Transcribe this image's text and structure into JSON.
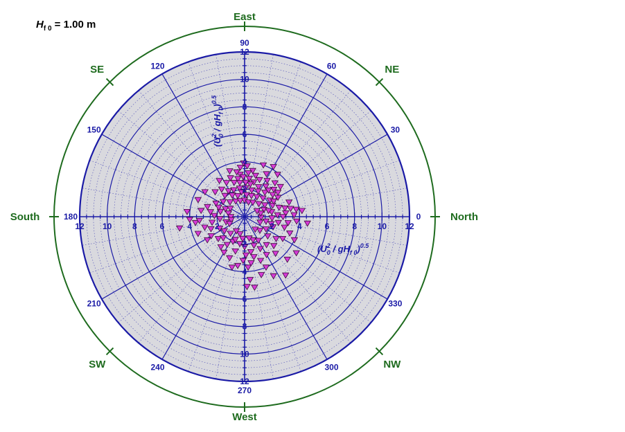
{
  "chart_data": {
    "type": "scatter",
    "subtype": "polar",
    "title": {
      "symbol": "H",
      "sub": "f 0",
      "rest": " = 1.00 m"
    },
    "radial_axis": {
      "range": [
        0,
        12
      ],
      "ticks": [
        2,
        4,
        6,
        8,
        10,
        12
      ],
      "tick_labels": [
        "2",
        "4",
        "6",
        "8",
        "10",
        "12"
      ],
      "label": {
        "a": "(U",
        "sup1": "2",
        "sub1": "0",
        "b": " / gH",
        "sub2": "f 0",
        "c": ")",
        "sup2": "0.5"
      }
    },
    "angular_axis": {
      "tick_degrees": [
        0,
        30,
        60,
        90,
        120,
        150,
        180,
        210,
        240,
        270,
        300,
        330
      ],
      "tick_labels": [
        "0",
        "30",
        "60",
        "90",
        "120",
        "150",
        "180",
        "210",
        "240",
        "270",
        "300",
        "330"
      ],
      "direction": "counterclockwise",
      "zero_at": "right"
    },
    "compass_labels": [
      {
        "deg": 0,
        "text": "North"
      },
      {
        "deg": 45,
        "text": "NE"
      },
      {
        "deg": 90,
        "text": "East"
      },
      {
        "deg": 135,
        "text": "SE"
      },
      {
        "deg": 180,
        "text": "South"
      },
      {
        "deg": 225,
        "text": "SW"
      },
      {
        "deg": 270,
        "text": "West"
      },
      {
        "deg": 315,
        "text": "NW"
      }
    ],
    "grid": true,
    "marker": {
      "shape": "triangle-down",
      "fill": "#d63ad6",
      "stroke": "#3a0a3a"
    },
    "colors": {
      "grid": "#1a1aa6",
      "minor_grid": "#4d4db8",
      "plot_bg": "#d9d9de",
      "compass": "#1e6b1e"
    },
    "points": [
      [
        91,
        3.9
      ],
      [
        87,
        3.7
      ],
      [
        95,
        3.6
      ],
      [
        80,
        3.4
      ],
      [
        70,
        4.0
      ],
      [
        60,
        4.2
      ],
      [
        52,
        3.9
      ],
      [
        63,
        3.5
      ],
      [
        75,
        3.1
      ],
      [
        85,
        3.2
      ],
      [
        96,
        3.1
      ],
      [
        100,
        3.3
      ],
      [
        108,
        3.5
      ],
      [
        110,
        3.0
      ],
      [
        100,
        2.8
      ],
      [
        92,
        2.9
      ],
      [
        83,
        2.8
      ],
      [
        75,
        2.6
      ],
      [
        68,
        2.9
      ],
      [
        58,
        3.1
      ],
      [
        48,
        3.3
      ],
      [
        40,
        3.4
      ],
      [
        43,
        2.9
      ],
      [
        55,
        2.7
      ],
      [
        65,
        2.4
      ],
      [
        80,
        2.4
      ],
      [
        88,
        2.5
      ],
      [
        98,
        2.5
      ],
      [
        107,
        2.6
      ],
      [
        118,
        2.8
      ],
      [
        125,
        3.2
      ],
      [
        130,
        2.6
      ],
      [
        122,
        2.2
      ],
      [
        112,
        2.1
      ],
      [
        100,
        2.1
      ],
      [
        88,
        2.1
      ],
      [
        75,
        2.0
      ],
      [
        62,
        2.1
      ],
      [
        50,
        2.3
      ],
      [
        38,
        2.6
      ],
      [
        30,
        2.8
      ],
      [
        33,
        2.2
      ],
      [
        45,
        1.9
      ],
      [
        58,
        1.7
      ],
      [
        72,
        1.6
      ],
      [
        85,
        1.6
      ],
      [
        97,
        1.8
      ],
      [
        108,
        1.6
      ],
      [
        120,
        1.8
      ],
      [
        133,
        2.1
      ],
      [
        140,
        2.8
      ],
      [
        148,
        3.4
      ],
      [
        155,
        2.3
      ],
      [
        145,
        1.9
      ],
      [
        135,
        1.5
      ],
      [
        120,
        1.3
      ],
      [
        105,
        1.2
      ],
      [
        90,
        1.2
      ],
      [
        75,
        1.1
      ],
      [
        60,
        1.2
      ],
      [
        42,
        1.4
      ],
      [
        30,
        1.7
      ],
      [
        22,
        2.2
      ],
      [
        15,
        2.6
      ],
      [
        12,
        3.0
      ],
      [
        18,
        3.4
      ],
      [
        10,
        2.0
      ],
      [
        20,
        1.5
      ],
      [
        165,
        2.8
      ],
      [
        172,
        3.2
      ],
      [
        160,
        3.6
      ],
      [
        175,
        4.2
      ],
      [
        178,
        2.2
      ],
      [
        168,
        1.8
      ],
      [
        158,
        1.5
      ],
      [
        150,
        1.2
      ],
      [
        168,
        1.2
      ],
      [
        180,
        1.0
      ],
      [
        172,
        2.5
      ],
      [
        160,
        2.0
      ],
      [
        185,
        1.8
      ],
      [
        190,
        2.4
      ],
      [
        195,
        3.0
      ],
      [
        187,
        3.6
      ],
      [
        183,
        4.0
      ],
      [
        196,
        1.4
      ],
      [
        205,
        2.0
      ],
      [
        200,
        2.6
      ],
      [
        210,
        2.8
      ],
      [
        193,
        1.0
      ],
      [
        205,
        1.2
      ],
      [
        215,
        1.8
      ],
      [
        220,
        2.5
      ],
      [
        212,
        3.2
      ],
      [
        200,
        3.6
      ],
      [
        190,
        4.8
      ],
      [
        185,
        3.3
      ],
      [
        225,
        2.2
      ],
      [
        232,
        2.8
      ],
      [
        240,
        3.0
      ],
      [
        230,
        1.6
      ],
      [
        245,
        2.0
      ],
      [
        238,
        2.4
      ],
      [
        250,
        3.2
      ],
      [
        255,
        2.6
      ],
      [
        248,
        1.8
      ],
      [
        260,
        2.0
      ],
      [
        265,
        1.6
      ],
      [
        255,
        1.3
      ],
      [
        240,
        1.2
      ],
      [
        270,
        2.2
      ],
      [
        272,
        2.8
      ],
      [
        268,
        3.2
      ],
      [
        262,
        3.6
      ],
      [
        256,
        3.8
      ],
      [
        274,
        3.7
      ],
      [
        278,
        3.4
      ],
      [
        280,
        2.6
      ],
      [
        283,
        3.0
      ],
      [
        288,
        2.2
      ],
      [
        290,
        3.4
      ],
      [
        275,
        4.6
      ],
      [
        272,
        5.1
      ],
      [
        278,
        5.2
      ],
      [
        286,
        4.4
      ],
      [
        293,
        4.0
      ],
      [
        300,
        3.2
      ],
      [
        296,
        2.6
      ],
      [
        290,
        1.8
      ],
      [
        282,
        1.6
      ],
      [
        300,
        2.0
      ],
      [
        308,
        2.6
      ],
      [
        315,
        3.0
      ],
      [
        310,
        3.5
      ],
      [
        320,
        2.2
      ],
      [
        325,
        2.8
      ],
      [
        330,
        3.2
      ],
      [
        318,
        1.5
      ],
      [
        330,
        1.8
      ],
      [
        340,
        2.2
      ],
      [
        345,
        3.0
      ],
      [
        340,
        3.5
      ],
      [
        335,
        4.0
      ],
      [
        350,
        2.5
      ],
      [
        352,
        3.2
      ],
      [
        355,
        3.8
      ],
      [
        348,
        1.6
      ],
      [
        357,
        2.0
      ],
      [
        3,
        2.4
      ],
      [
        5,
        3.0
      ],
      [
        2,
        3.6
      ],
      [
        8,
        3.8
      ],
      [
        6,
        4.2
      ],
      [
        354,
        4.6
      ],
      [
        358,
        1.2
      ],
      [
        12,
        1.2
      ],
      [
        25,
        1.0
      ],
      [
        340,
        1.2
      ],
      [
        310,
        1.2
      ],
      [
        325,
        4.6
      ],
      [
        305,
        5.2
      ],
      [
        296,
        4.8
      ],
      [
        315,
        4.4
      ],
      [
        345,
        2.0
      ],
      [
        0,
        2.8
      ],
      [
        10,
        3.4
      ],
      [
        14,
        1.8
      ],
      [
        28,
        2.4
      ],
      [
        36,
        3.0
      ],
      [
        48,
        2.6
      ]
    ]
  }
}
